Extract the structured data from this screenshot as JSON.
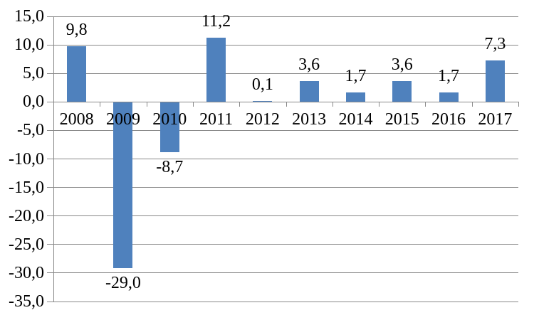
{
  "chart_data": {
    "type": "bar",
    "title": "",
    "xlabel": "",
    "ylabel": "",
    "categories": [
      "2008",
      "2009",
      "2010",
      "2011",
      "2012",
      "2013",
      "2014",
      "2015",
      "2016",
      "2017"
    ],
    "values": [
      9.8,
      -29.0,
      -8.7,
      11.2,
      0.1,
      3.6,
      1.7,
      3.6,
      1.7,
      7.3
    ],
    "data_labels": [
      "9,8",
      "-29,0",
      "-8,7",
      "11,2",
      "0,1",
      "3,6",
      "1,7",
      "3,6",
      "1,7",
      "7,3"
    ],
    "ylim": [
      -35,
      15
    ],
    "y_tick_step": 5,
    "y_tick_labels": [
      "15,0",
      "10,0",
      "5,0",
      "0,0",
      "-5,0",
      "-10,0",
      "-15,0",
      "-20,0",
      "-25,0",
      "-30,0",
      "-35,0"
    ],
    "grid": true,
    "legend": false,
    "decimal_separator": ",",
    "colors": {
      "bar": "#4F81BD",
      "gridline": "#898989",
      "axis": "#898989",
      "text": "#000000",
      "background": "#FFFFFF"
    }
  }
}
